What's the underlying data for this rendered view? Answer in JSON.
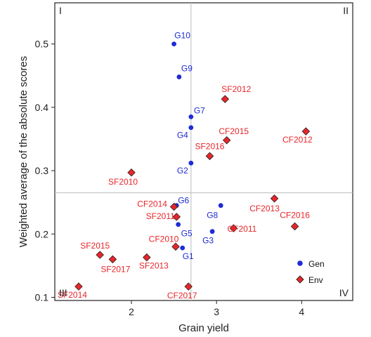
{
  "chart_data": {
    "type": "scatter",
    "xlabel": "Grain yield",
    "ylabel": "Weighted average of the absolute scores",
    "xlim": [
      1.1,
      4.6
    ],
    "ylim": [
      0.095,
      0.565
    ],
    "xticks": [
      "2",
      "3",
      "4"
    ],
    "xtick_values": [
      2,
      3,
      4
    ],
    "yticks": [
      "0.1",
      "0.2",
      "0.3",
      "0.4",
      "0.5"
    ],
    "ytick_values": [
      0.1,
      0.2,
      0.3,
      0.4,
      0.5
    ],
    "mean_x": 2.7,
    "mean_y": 0.265,
    "quadrant_labels": {
      "top_left": "I",
      "top_right": "II",
      "bottom_left": "III",
      "bottom_right": "IV"
    },
    "colors": {
      "Gen": "#1f2bd6",
      "Env": "#e8262a"
    },
    "legend": {
      "position": "bottom-right",
      "entries": [
        "Gen",
        "Env"
      ]
    },
    "series": [
      {
        "name": "Gen",
        "marker": "circle",
        "points": [
          {
            "label": "G10",
            "x": 2.5,
            "y": 0.5
          },
          {
            "label": "G9",
            "x": 2.56,
            "y": 0.448
          },
          {
            "label": "G7",
            "x": 2.7,
            "y": 0.385
          },
          {
            "label": "G4",
            "x": 2.7,
            "y": 0.368
          },
          {
            "label": "G2",
            "x": 2.7,
            "y": 0.312
          },
          {
            "label": "G6",
            "x": 2.53,
            "y": 0.245
          },
          {
            "label": "G8",
            "x": 3.05,
            "y": 0.245
          },
          {
            "label": "G5",
            "x": 2.55,
            "y": 0.215
          },
          {
            "label": "G3",
            "x": 2.95,
            "y": 0.204
          },
          {
            "label": "G1",
            "x": 2.6,
            "y": 0.178
          }
        ]
      },
      {
        "name": "Env",
        "marker": "diamond",
        "points": [
          {
            "label": "SF2012",
            "x": 3.1,
            "y": 0.413
          },
          {
            "label": "CF2015",
            "x": 3.12,
            "y": 0.348
          },
          {
            "label": "CF2012",
            "x": 4.05,
            "y": 0.362
          },
          {
            "label": "SF2016",
            "x": 2.92,
            "y": 0.323
          },
          {
            "label": "SF2010",
            "x": 2.0,
            "y": 0.297
          },
          {
            "label": "CF2014",
            "x": 2.5,
            "y": 0.243
          },
          {
            "label": "CF2013",
            "x": 3.68,
            "y": 0.256
          },
          {
            "label": "SF2011",
            "x": 2.53,
            "y": 0.227
          },
          {
            "label": "CF2011",
            "x": 3.2,
            "y": 0.209
          },
          {
            "label": "CF2016",
            "x": 3.92,
            "y": 0.212
          },
          {
            "label": "CF2010",
            "x": 2.52,
            "y": 0.18
          },
          {
            "label": "SF2015",
            "x": 1.63,
            "y": 0.167
          },
          {
            "label": "SF2017",
            "x": 1.78,
            "y": 0.16
          },
          {
            "label": "SF2013",
            "x": 2.18,
            "y": 0.163
          },
          {
            "label": "SF2014",
            "x": 1.38,
            "y": 0.117
          },
          {
            "label": "CF2017",
            "x": 2.67,
            "y": 0.117
          }
        ]
      }
    ]
  }
}
